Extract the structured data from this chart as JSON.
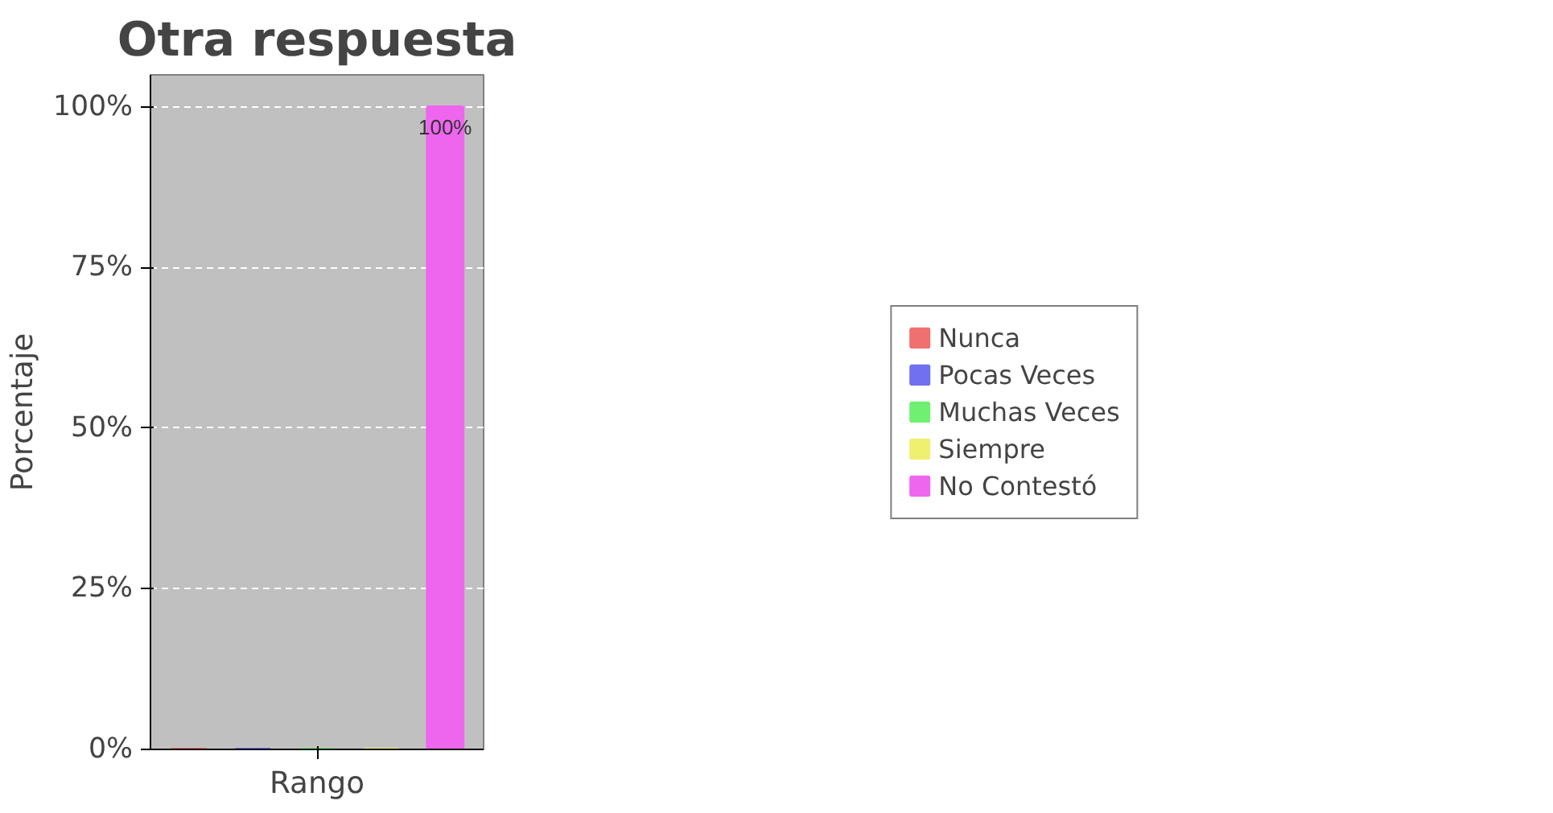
{
  "chart_data": {
    "type": "bar",
    "title": "Otra respuesta",
    "xlabel": "Rango",
    "ylabel": "Porcentaje",
    "categories": [
      null
    ],
    "series": [
      {
        "name": "Nunca",
        "color": "#f07070",
        "values": [
          0
        ]
      },
      {
        "name": "Pocas Veces",
        "color": "#7070f0",
        "values": [
          0
        ]
      },
      {
        "name": "Muchas Veces",
        "color": "#70f070",
        "values": [
          0
        ]
      },
      {
        "name": "Siempre",
        "color": "#f0f070",
        "values": [
          0
        ]
      },
      {
        "name": "No Contestó",
        "color": "#ee66ee",
        "values": [
          100
        ],
        "value_labels": [
          "100%"
        ]
      }
    ],
    "ylim": [
      0,
      105
    ],
    "yticks": [
      {
        "value": 0,
        "label": "0%"
      },
      {
        "value": 25,
        "label": "25%"
      },
      {
        "value": 50,
        "label": "50%"
      },
      {
        "value": 75,
        "label": "75%"
      },
      {
        "value": 100,
        "label": "100%"
      }
    ],
    "grid": "y",
    "legend": "right"
  }
}
